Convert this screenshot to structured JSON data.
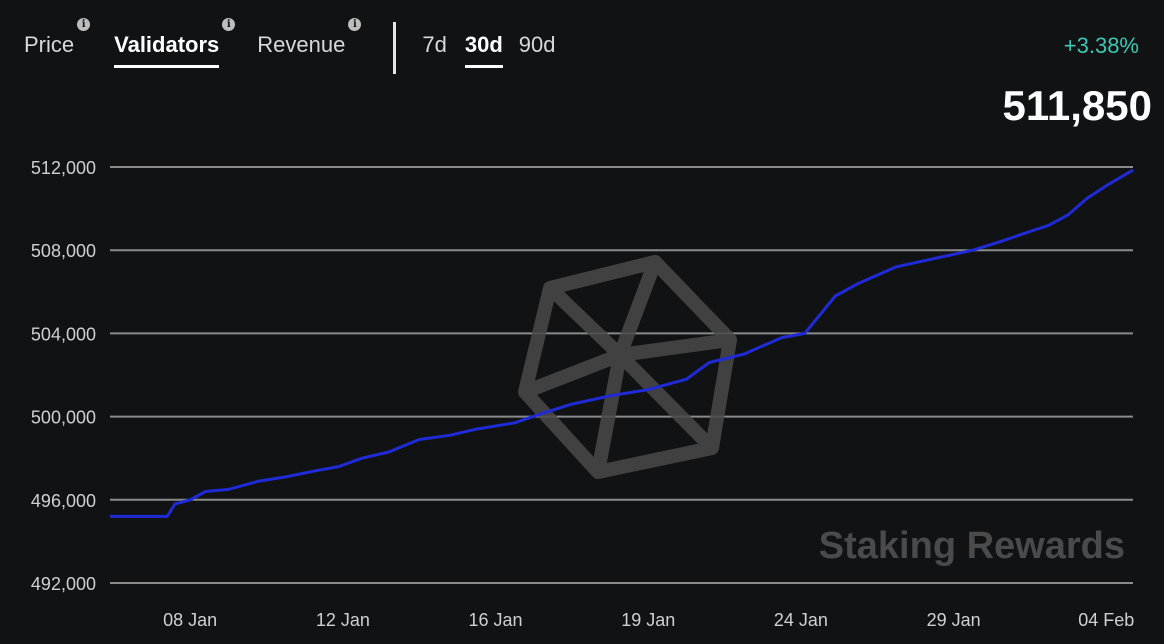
{
  "tabs": {
    "metrics": [
      {
        "label": "Price",
        "active": false,
        "info_icon": "info-icon"
      },
      {
        "label": "Validators",
        "active": true,
        "info_icon": "info-icon"
      },
      {
        "label": "Revenue",
        "active": false,
        "info_icon": "info-icon"
      }
    ],
    "ranges": [
      {
        "label": "7d",
        "active": false
      },
      {
        "label": "30d",
        "active": true
      },
      {
        "label": "90d",
        "active": false
      }
    ]
  },
  "summary": {
    "change": "+3.38%",
    "current": "511,850"
  },
  "colors": {
    "background": "#111214",
    "line": "#1f2bd6",
    "grid": "#8a8a8a",
    "change": "#3ec7b3",
    "watermark": "#4b4b4b"
  },
  "watermark": {
    "text": "Staking Rewards",
    "icon": "icosahedron-logo-icon"
  },
  "chart_data": {
    "type": "line",
    "title": "",
    "xlabel": "",
    "ylabel": "",
    "ylim": [
      491200,
      512000
    ],
    "yticks": [
      492000,
      496000,
      500000,
      504000,
      508000,
      512000
    ],
    "ytick_labels": [
      "492,000",
      "496,000",
      "500,000",
      "504,000",
      "508,000",
      "512,000"
    ],
    "xticks": [
      {
        "label": "08 Jan",
        "day": 8
      },
      {
        "label": "12 Jan",
        "day": 12
      },
      {
        "label": "16 Jan",
        "day": 16
      },
      {
        "label": "19 Jan",
        "day": 20
      },
      {
        "label": "24 Jan",
        "day": 24
      },
      {
        "label": "29 Jan",
        "day": 28
      },
      {
        "label": "04 Feb",
        "day": 32
      }
    ],
    "grid": true,
    "legend": "none",
    "series": [
      {
        "x": [
          5.9,
          7.4,
          7.6,
          8.0,
          8.4,
          9.0,
          9.8,
          10.5,
          11.3,
          11.9,
          12.5,
          13.2,
          14.0,
          14.8,
          15.5,
          16.5,
          17.3,
          18.0,
          19.0,
          20.0,
          21.0,
          21.6,
          22.5,
          23.5,
          24.1,
          24.9,
          25.5,
          26.5,
          27.5,
          28.5,
          29.2,
          30.0,
          30.5,
          31.0,
          31.5,
          32.0,
          32.7
        ],
        "y": [
          495200,
          495200,
          495800,
          496000,
          496400,
          496500,
          496900,
          497100,
          497400,
          497600,
          498000,
          498300,
          498900,
          499100,
          499400,
          499700,
          500200,
          500600,
          501000,
          501300,
          501800,
          502600,
          503000,
          503800,
          504000,
          505800,
          506400,
          507200,
          507600,
          508000,
          508400,
          508900,
          509200,
          509700,
          510500,
          511100,
          511850
        ]
      }
    ]
  }
}
